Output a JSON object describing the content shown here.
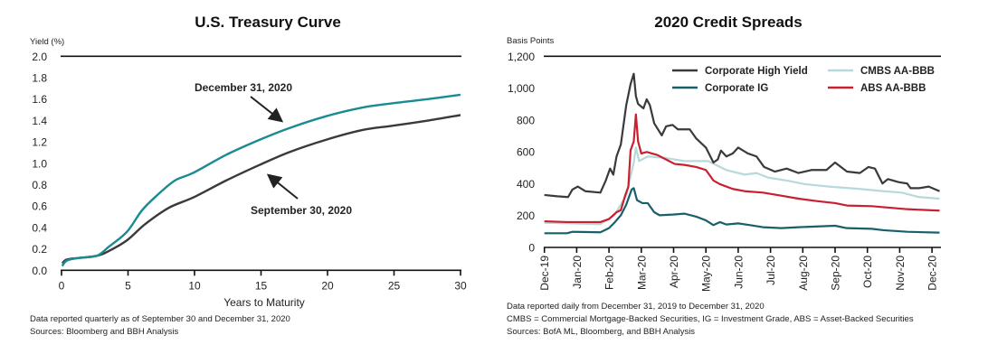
{
  "chart_data": [
    {
      "type": "line",
      "title": "U.S. Treasury Curve",
      "ylabel": "Yield (%)",
      "xlabel": "Years to Maturity",
      "xlim": [
        0,
        30
      ],
      "ylim": [
        0,
        2.0
      ],
      "xticks": [
        "0",
        "5",
        "10",
        "15",
        "20",
        "25",
        "30"
      ],
      "yticks": [
        "0.0",
        "0.2",
        "0.4",
        "0.6",
        "0.8",
        "1.0",
        "1.2",
        "1.4",
        "1.6",
        "1.8",
        "2.0"
      ],
      "grid": false,
      "series": [
        {
          "name": "December 31, 2020",
          "color": "#1a8a93",
          "x": [
            0.05,
            0.4,
            1.3,
            2.65,
            3.56,
            4.92,
            6.05,
            7.18,
            8.54,
            9.9,
            12.4,
            14.9,
            17.15,
            19.9,
            22.6,
            24.86,
            27.6,
            30
          ],
          "y": [
            0.04,
            0.09,
            0.115,
            0.135,
            0.22,
            0.36,
            0.56,
            0.7,
            0.84,
            0.91,
            1.08,
            1.22,
            1.33,
            1.44,
            1.52,
            1.56,
            1.6,
            1.64
          ]
        },
        {
          "name": "September 30, 2020",
          "color": "#3a3a3c",
          "x": [
            0.05,
            0.4,
            1.3,
            2.65,
            3.56,
            4.92,
            6.28,
            8.09,
            9.9,
            12.4,
            14.9,
            17.15,
            19.9,
            22.6,
            24.86,
            27.6,
            30
          ],
          "y": [
            0.065,
            0.1,
            0.115,
            0.135,
            0.18,
            0.28,
            0.43,
            0.585,
            0.68,
            0.84,
            0.985,
            1.105,
            1.22,
            1.31,
            1.35,
            1.4,
            1.45
          ]
        }
      ],
      "annotations": [
        "December 31, 2020",
        "September 30, 2020"
      ],
      "notes": [
        "Data reported quarterly as of September 30 and December 31, 2020",
        "Sources: Bloomberg and BBH Analysis"
      ]
    },
    {
      "type": "line",
      "title": "2020 Credit Spreads",
      "ylabel": "Basis Points",
      "ylim": [
        0,
        1200
      ],
      "yticks": [
        "0",
        "200",
        "400",
        "600",
        "800",
        "1,000",
        "1,200"
      ],
      "xticks": [
        "Dec-19",
        "Jan-20",
        "Feb-20",
        "Mar-20",
        "Apr-20",
        "May-20",
        "Jun-20",
        "Jul-20",
        "Aug-20",
        "Sep-20",
        "Oct-20",
        "Nov-20",
        "Dec-20"
      ],
      "grid": false,
      "legend_position": "top-right",
      "series": [
        {
          "name": "Corporate High Yield",
          "color": "#3a3a3c",
          "points": [
            [
              "2019-12-01",
              329
            ],
            [
              "2019-12-13",
              321
            ],
            [
              "2019-12-23",
              316
            ],
            [
              "2019-12-27",
              363
            ],
            [
              "2020-01-02",
              382
            ],
            [
              "2020-01-09",
              353
            ],
            [
              "2020-01-23",
              344
            ],
            [
              "2020-01-28",
              420
            ],
            [
              "2020-02-02",
              495
            ],
            [
              "2020-02-05",
              457
            ],
            [
              "2020-02-08",
              571
            ],
            [
              "2020-02-12",
              646
            ],
            [
              "2020-02-17",
              892
            ],
            [
              "2020-02-21",
              1024
            ],
            [
              "2020-02-24",
              1090
            ],
            [
              "2020-02-26",
              949
            ],
            [
              "2020-02-28",
              901
            ],
            [
              "2020-03-03",
              873
            ],
            [
              "2020-03-06",
              930
            ],
            [
              "2020-03-09",
              892
            ],
            [
              "2020-03-13",
              779
            ],
            [
              "2020-03-20",
              703
            ],
            [
              "2020-03-24",
              760
            ],
            [
              "2020-03-30",
              769
            ],
            [
              "2020-04-05",
              741
            ],
            [
              "2020-04-16",
              741
            ],
            [
              "2020-04-22",
              684
            ],
            [
              "2020-05-01",
              627
            ],
            [
              "2020-05-08",
              533
            ],
            [
              "2020-05-12",
              552
            ],
            [
              "2020-05-15",
              608
            ],
            [
              "2020-05-20",
              571
            ],
            [
              "2020-05-26",
              590
            ],
            [
              "2020-06-01",
              627
            ],
            [
              "2020-06-10",
              590
            ],
            [
              "2020-06-18",
              571
            ],
            [
              "2020-06-25",
              505
            ],
            [
              "2020-07-05",
              476
            ],
            [
              "2020-07-16",
              495
            ],
            [
              "2020-07-27",
              467
            ],
            [
              "2020-08-09",
              486
            ],
            [
              "2020-08-23",
              486
            ],
            [
              "2020-09-01",
              533
            ],
            [
              "2020-09-12",
              476
            ],
            [
              "2020-09-24",
              467
            ],
            [
              "2020-10-02",
              505
            ],
            [
              "2020-10-08",
              495
            ],
            [
              "2020-10-15",
              401
            ],
            [
              "2020-10-20",
              429
            ],
            [
              "2020-10-30",
              410
            ],
            [
              "2020-11-08",
              401
            ],
            [
              "2020-11-11",
              372
            ],
            [
              "2020-11-19",
              372
            ],
            [
              "2020-11-28",
              382
            ],
            [
              "2020-12-08",
              353
            ]
          ]
        },
        {
          "name": "CMBS AA-BBB",
          "color": "#b7d9da",
          "points": [
            [
              "2019-12-01",
              155
            ],
            [
              "2020-01-23",
              146
            ],
            [
              "2020-02-06",
              202
            ],
            [
              "2020-02-17",
              325
            ],
            [
              "2020-02-24",
              533
            ],
            [
              "2020-02-26",
              627
            ],
            [
              "2020-02-29",
              542
            ],
            [
              "2020-03-07",
              571
            ],
            [
              "2020-03-24",
              561
            ],
            [
              "2020-04-11",
              542
            ],
            [
              "2020-05-03",
              542
            ],
            [
              "2020-05-20",
              486
            ],
            [
              "2020-06-07",
              457
            ],
            [
              "2020-06-18",
              467
            ],
            [
              "2020-06-29",
              438
            ],
            [
              "2020-07-16",
              420
            ],
            [
              "2020-08-03",
              397
            ],
            [
              "2020-08-25",
              382
            ],
            [
              "2020-09-24",
              367
            ],
            [
              "2020-10-16",
              353
            ],
            [
              "2020-11-03",
              344
            ],
            [
              "2020-11-19",
              316
            ],
            [
              "2020-12-08",
              306
            ]
          ]
        },
        {
          "name": "Corporate IG",
          "color": "#17606a",
          "points": [
            [
              "2019-12-01",
              89
            ],
            [
              "2019-12-22",
              89
            ],
            [
              "2019-12-27",
              98
            ],
            [
              "2020-01-23",
              95
            ],
            [
              "2020-02-01",
              121
            ],
            [
              "2020-02-06",
              155
            ],
            [
              "2020-02-12",
              202
            ],
            [
              "2020-02-17",
              268
            ],
            [
              "2020-02-22",
              363
            ],
            [
              "2020-02-24",
              372
            ],
            [
              "2020-02-27",
              297
            ],
            [
              "2020-03-02",
              278
            ],
            [
              "2020-03-07",
              278
            ],
            [
              "2020-03-13",
              221
            ],
            [
              "2020-03-18",
              202
            ],
            [
              "2020-03-30",
              206
            ],
            [
              "2020-04-11",
              212
            ],
            [
              "2020-04-22",
              193
            ],
            [
              "2020-05-01",
              170
            ],
            [
              "2020-05-08",
              140
            ],
            [
              "2020-05-14",
              159
            ],
            [
              "2020-05-20",
              144
            ],
            [
              "2020-06-01",
              151
            ],
            [
              "2020-06-12",
              140
            ],
            [
              "2020-06-24",
              127
            ],
            [
              "2020-07-11",
              121
            ],
            [
              "2020-07-27",
              127
            ],
            [
              "2020-09-01",
              136
            ],
            [
              "2020-09-12",
              121
            ],
            [
              "2020-10-05",
              117
            ],
            [
              "2020-10-16",
              108
            ],
            [
              "2020-11-08",
              98
            ],
            [
              "2020-12-08",
              93
            ]
          ]
        },
        {
          "name": "ABS AA-BBB",
          "color": "#c8202f",
          "points": [
            [
              "2019-12-01",
              164
            ],
            [
              "2019-12-22",
              159
            ],
            [
              "2020-01-23",
              159
            ],
            [
              "2020-02-01",
              178
            ],
            [
              "2020-02-08",
              221
            ],
            [
              "2020-02-12",
              234
            ],
            [
              "2020-02-16",
              325
            ],
            [
              "2020-02-19",
              382
            ],
            [
              "2020-02-21",
              609
            ],
            [
              "2020-02-24",
              665
            ],
            [
              "2020-02-26",
              835
            ],
            [
              "2020-02-28",
              665
            ],
            [
              "2020-03-01",
              590
            ],
            [
              "2020-03-06",
              599
            ],
            [
              "2020-03-16",
              580
            ],
            [
              "2020-03-24",
              552
            ],
            [
              "2020-04-02",
              524
            ],
            [
              "2020-04-11",
              518
            ],
            [
              "2020-04-22",
              505
            ],
            [
              "2020-05-01",
              486
            ],
            [
              "2020-05-08",
              420
            ],
            [
              "2020-05-14",
              397
            ],
            [
              "2020-05-26",
              367
            ],
            [
              "2020-06-07",
              353
            ],
            [
              "2020-06-24",
              344
            ],
            [
              "2020-07-11",
              325
            ],
            [
              "2020-07-27",
              306
            ],
            [
              "2020-08-14",
              291
            ],
            [
              "2020-09-01",
              278
            ],
            [
              "2020-09-12",
              263
            ],
            [
              "2020-10-05",
              259
            ],
            [
              "2020-10-22",
              249
            ],
            [
              "2020-11-08",
              240
            ],
            [
              "2020-12-08",
              231
            ]
          ]
        }
      ],
      "notes": [
        "Data reported daily from December 31, 2019 to December 31, 2020",
        "CMBS = Commercial Mortgage-Backed Securities, IG = Investment Grade, ABS = Asset-Backed Securities",
        "Sources: BofA ML, Bloomberg, and BBH Analysis"
      ]
    }
  ]
}
